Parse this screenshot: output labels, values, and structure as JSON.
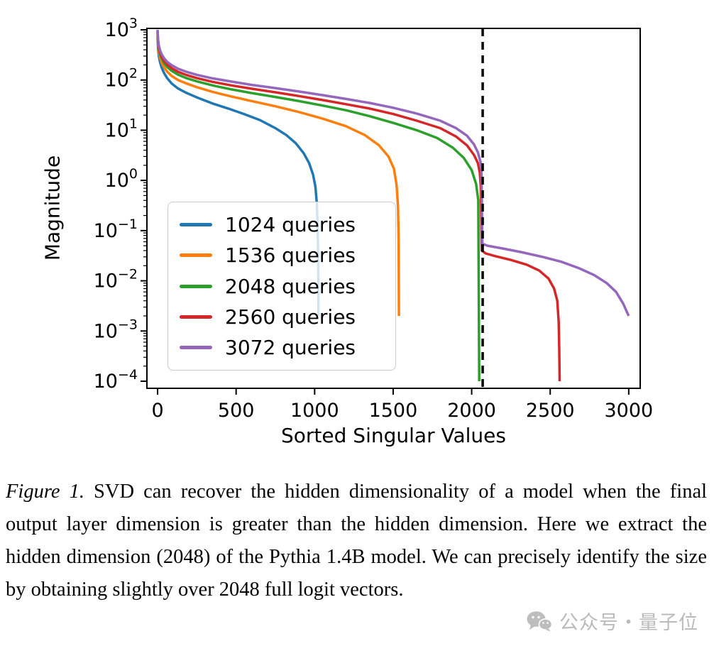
{
  "chart_data": {
    "type": "line",
    "title": "",
    "xlabel": "Sorted Singular Values",
    "ylabel": "Magnitude",
    "xlim": [
      -68,
      3073
    ],
    "ylim": [
      0.0001,
      1000
    ],
    "yscale": "log",
    "grid": false,
    "xticks": [
      0,
      500,
      1000,
      1500,
      2000,
      2500,
      3000
    ],
    "ytick_exponents": [
      3,
      2,
      1,
      0,
      -1,
      -2,
      -3,
      -4
    ],
    "legend_position": "center-left",
    "vline": {
      "x": 2070,
      "color": "#000000",
      "style": "dashed"
    },
    "series": [
      {
        "name": "1024 queries",
        "color": "#1f77b4",
        "points": [
          [
            0,
            700
          ],
          [
            3,
            420
          ],
          [
            8,
            300
          ],
          [
            15,
            230
          ],
          [
            25,
            180
          ],
          [
            40,
            140
          ],
          [
            60,
            110
          ],
          [
            90,
            85
          ],
          [
            130,
            68
          ],
          [
            180,
            56
          ],
          [
            250,
            45
          ],
          [
            350,
            34
          ],
          [
            450,
            27
          ],
          [
            550,
            21
          ],
          [
            650,
            16
          ],
          [
            750,
            11
          ],
          [
            820,
            8
          ],
          [
            880,
            5.5
          ],
          [
            930,
            3.5
          ],
          [
            965,
            2.2
          ],
          [
            990,
            1.3
          ],
          [
            1005,
            0.75
          ],
          [
            1014,
            0.35
          ],
          [
            1020,
            0.1
          ],
          [
            1023,
            0.02
          ],
          [
            1024,
            0.002
          ]
        ]
      },
      {
        "name": "1536 queries",
        "color": "#ff7f0e",
        "points": [
          [
            0,
            800
          ],
          [
            3,
            500
          ],
          [
            8,
            360
          ],
          [
            15,
            280
          ],
          [
            25,
            225
          ],
          [
            40,
            180
          ],
          [
            60,
            148
          ],
          [
            90,
            120
          ],
          [
            130,
            100
          ],
          [
            180,
            86
          ],
          [
            250,
            72
          ],
          [
            350,
            58
          ],
          [
            470,
            47
          ],
          [
            600,
            38
          ],
          [
            750,
            30
          ],
          [
            900,
            23
          ],
          [
            1050,
            17
          ],
          [
            1200,
            12
          ],
          [
            1320,
            8
          ],
          [
            1410,
            5
          ],
          [
            1470,
            3
          ],
          [
            1505,
            1.7
          ],
          [
            1522,
            0.8
          ],
          [
            1531,
            0.3
          ],
          [
            1535,
            0.06
          ],
          [
            1537,
            0.002
          ]
        ]
      },
      {
        "name": "2048 queries",
        "color": "#2ca02c",
        "points": [
          [
            0,
            900
          ],
          [
            3,
            560
          ],
          [
            8,
            420
          ],
          [
            15,
            330
          ],
          [
            25,
            270
          ],
          [
            40,
            220
          ],
          [
            60,
            182
          ],
          [
            90,
            152
          ],
          [
            130,
            128
          ],
          [
            180,
            110
          ],
          [
            250,
            94
          ],
          [
            350,
            78
          ],
          [
            470,
            65
          ],
          [
            600,
            55
          ],
          [
            750,
            46
          ],
          [
            900,
            38
          ],
          [
            1050,
            31
          ],
          [
            1200,
            25
          ],
          [
            1350,
            19
          ],
          [
            1500,
            14
          ],
          [
            1650,
            10
          ],
          [
            1780,
            7
          ],
          [
            1880,
            4.5
          ],
          [
            1950,
            2.8
          ],
          [
            2000,
            1.6
          ],
          [
            2028,
            0.85
          ],
          [
            2042,
            0.4
          ],
          [
            2048,
            0.0001
          ]
        ]
      },
      {
        "name": "2560 queries",
        "color": "#d62728",
        "points": [
          [
            0,
            950
          ],
          [
            3,
            600
          ],
          [
            8,
            450
          ],
          [
            15,
            360
          ],
          [
            25,
            295
          ],
          [
            40,
            245
          ],
          [
            60,
            205
          ],
          [
            90,
            172
          ],
          [
            130,
            146
          ],
          [
            180,
            127
          ],
          [
            250,
            109
          ],
          [
            350,
            92
          ],
          [
            470,
            78
          ],
          [
            600,
            67
          ],
          [
            750,
            57
          ],
          [
            900,
            48
          ],
          [
            1050,
            40
          ],
          [
            1200,
            33
          ],
          [
            1350,
            27
          ],
          [
            1500,
            21
          ],
          [
            1650,
            15.5
          ],
          [
            1800,
            11
          ],
          [
            1900,
            7.5
          ],
          [
            1970,
            5
          ],
          [
            2015,
            3.2
          ],
          [
            2040,
            2.2
          ],
          [
            2052,
            1.4
          ],
          [
            2058,
            0.75
          ],
          [
            2064,
            0.04
          ],
          [
            2090,
            0.035
          ],
          [
            2150,
            0.031
          ],
          [
            2250,
            0.026
          ],
          [
            2350,
            0.021
          ],
          [
            2430,
            0.016
          ],
          [
            2490,
            0.011
          ],
          [
            2525,
            0.007
          ],
          [
            2545,
            0.004
          ],
          [
            2554,
            0.0015
          ],
          [
            2558,
            0.0004
          ],
          [
            2560,
            0.0001
          ]
        ]
      },
      {
        "name": "3072 queries",
        "color": "#9467bd",
        "points": [
          [
            0,
            1000
          ],
          [
            3,
            650
          ],
          [
            8,
            490
          ],
          [
            15,
            395
          ],
          [
            25,
            330
          ],
          [
            40,
            275
          ],
          [
            60,
            232
          ],
          [
            90,
            197
          ],
          [
            130,
            168
          ],
          [
            180,
            147
          ],
          [
            250,
            127
          ],
          [
            350,
            108
          ],
          [
            470,
            93
          ],
          [
            600,
            80
          ],
          [
            750,
            69
          ],
          [
            900,
            59
          ],
          [
            1050,
            50
          ],
          [
            1200,
            42
          ],
          [
            1350,
            35
          ],
          [
            1500,
            28
          ],
          [
            1650,
            21.5
          ],
          [
            1800,
            15.5
          ],
          [
            1900,
            11
          ],
          [
            1970,
            7.8
          ],
          [
            2015,
            5.2
          ],
          [
            2040,
            3.6
          ],
          [
            2055,
            2.4
          ],
          [
            2062,
            1.8
          ],
          [
            2068,
            0.055
          ],
          [
            2100,
            0.05
          ],
          [
            2200,
            0.044
          ],
          [
            2320,
            0.037
          ],
          [
            2450,
            0.03
          ],
          [
            2570,
            0.024
          ],
          [
            2680,
            0.018
          ],
          [
            2780,
            0.013
          ],
          [
            2860,
            0.009
          ],
          [
            2920,
            0.006
          ],
          [
            2965,
            0.0035
          ],
          [
            3000,
            0.002
          ]
        ]
      }
    ]
  },
  "caption": {
    "figure_label": "Figure 1.",
    "text": "SVD can recover the hidden dimensionality of a model when the final output layer dimension is greater than the hidden dimension. Here we extract the hidden dimension (2048) of the Pythia 1.4B model. We can precisely identify the size by obtaining slightly over 2048 full logit vectors."
  },
  "watermark": {
    "icon": "wechat-icon",
    "text": "公众号・量子位"
  }
}
